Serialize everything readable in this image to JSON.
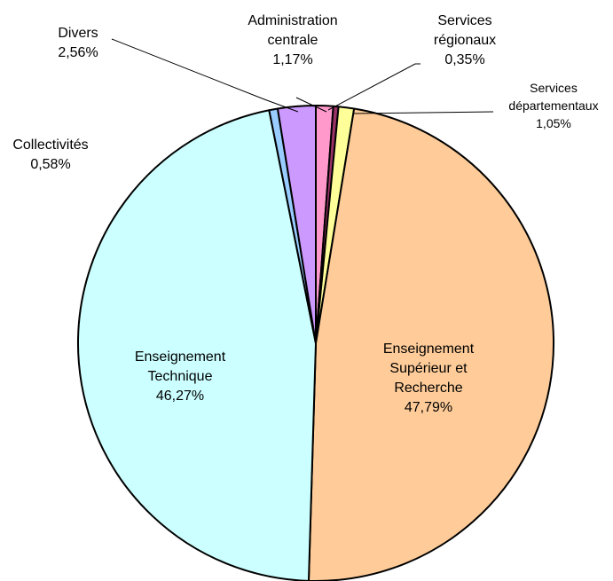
{
  "chart_data": {
    "type": "pie",
    "title": "",
    "slices": [
      {
        "label_lines": [
          "Administration",
          "centrale"
        ],
        "value": 1.17,
        "value_label": "1,17%",
        "color": "#ff99cc"
      },
      {
        "label_lines": [
          "Services",
          "régionaux"
        ],
        "value": 0.35,
        "value_label": "0,35%",
        "color": "#993366"
      },
      {
        "label_lines": [
          "Services",
          "départementaux"
        ],
        "value": 1.05,
        "value_label": "1,05%",
        "color": "#ffff99"
      },
      {
        "label_lines": [
          "Enseignement",
          "Supérieur et",
          "Recherche"
        ],
        "value": 47.79,
        "value_label": "47,79%",
        "color": "#ffcc99"
      },
      {
        "label_lines": [
          "Enseignement",
          "Technique"
        ],
        "value": 46.27,
        "value_label": "46,27%",
        "color": "#ccffff"
      },
      {
        "label_lines": [
          "Collectivités"
        ],
        "value": 0.58,
        "value_label": "0,58%",
        "color": "#99ccff"
      },
      {
        "label_lines": [
          "Divers"
        ],
        "value": 2.56,
        "value_label": "2,56%",
        "color": "#cc99ff"
      }
    ]
  }
}
